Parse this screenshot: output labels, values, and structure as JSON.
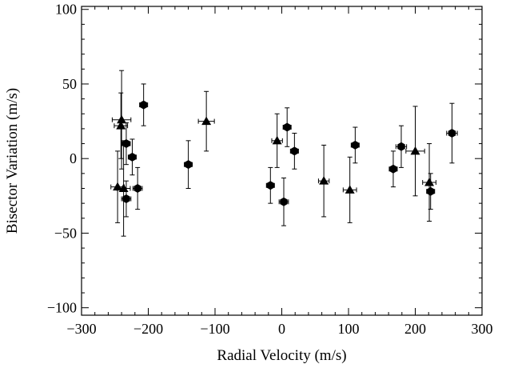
{
  "chart_data": {
    "type": "scatter",
    "xlabel": "Radial Velocity (m/s)",
    "ylabel": "Bisector Variation (m/s)",
    "xlim": [
      -300,
      300
    ],
    "ylim": [
      -105,
      102
    ],
    "x_ticks": [
      -300,
      -200,
      -100,
      0,
      100,
      200,
      300
    ],
    "y_ticks": [
      -100,
      -50,
      0,
      50,
      100
    ],
    "x_tick_labels": [
      "−300",
      "−200",
      "−100",
      "0",
      "100",
      "200",
      "300"
    ],
    "y_tick_labels": [
      "−100",
      "−50",
      "0",
      "50",
      "100"
    ],
    "grid": false,
    "series": [
      {
        "marker": "hexagon",
        "points": [
          {
            "x": -233,
            "y": 10,
            "xerr": 6,
            "yerr": 14
          },
          {
            "x": -224,
            "y": 1,
            "xerr": 6,
            "yerr": 12
          },
          {
            "x": -207,
            "y": 36,
            "xerr": 6,
            "yerr": 14
          },
          {
            "x": -233,
            "y": -27,
            "xerr": 7,
            "yerr": 12
          },
          {
            "x": -216,
            "y": -20,
            "xerr": 7,
            "yerr": 14
          },
          {
            "x": -140,
            "y": -4,
            "xerr": 6,
            "yerr": 16
          },
          {
            "x": -17,
            "y": -18,
            "xerr": 6,
            "yerr": 12
          },
          {
            "x": 3,
            "y": -29,
            "xerr": 7,
            "yerr": 16
          },
          {
            "x": 8,
            "y": 21,
            "xerr": 6,
            "yerr": 13
          },
          {
            "x": 19,
            "y": 5,
            "xerr": 6,
            "yerr": 12
          },
          {
            "x": 110,
            "y": 9,
            "xerr": 6,
            "yerr": 12
          },
          {
            "x": 167,
            "y": -7,
            "xerr": 6,
            "yerr": 12
          },
          {
            "x": 179,
            "y": 8,
            "xerr": 8,
            "yerr": 14
          },
          {
            "x": 223,
            "y": -22,
            "xerr": 6,
            "yerr": 12
          },
          {
            "x": 255,
            "y": 17,
            "xerr": 8,
            "yerr": 20
          }
        ]
      },
      {
        "marker": "triangle",
        "points": [
          {
            "x": -240,
            "y": 26,
            "xerr": 14,
            "yerr": 33
          },
          {
            "x": -241,
            "y": 22,
            "xerr": 10,
            "yerr": 22
          },
          {
            "x": -246,
            "y": -19,
            "xerr": 10,
            "yerr": 24
          },
          {
            "x": -237,
            "y": -20,
            "xerr": 10,
            "yerr": 32
          },
          {
            "x": -113,
            "y": 25,
            "xerr": 12,
            "yerr": 20
          },
          {
            "x": -7,
            "y": 12,
            "xerr": 8,
            "yerr": 18
          },
          {
            "x": 63,
            "y": -15,
            "xerr": 8,
            "yerr": 24
          },
          {
            "x": 102,
            "y": -21,
            "xerr": 10,
            "yerr": 22
          },
          {
            "x": 200,
            "y": 5,
            "xerr": 14,
            "yerr": 30
          },
          {
            "x": 221,
            "y": -16,
            "xerr": 10,
            "yerr": 26
          }
        ]
      }
    ]
  }
}
